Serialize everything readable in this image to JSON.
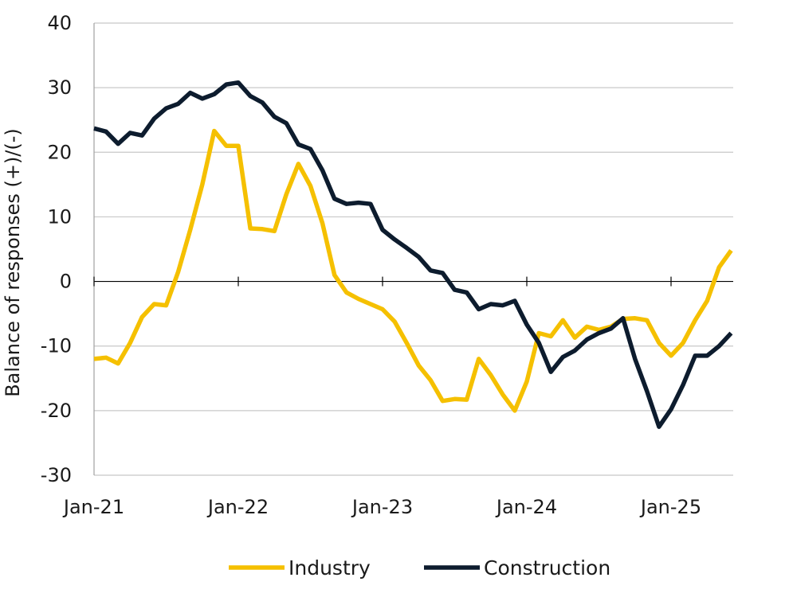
{
  "chart_data": {
    "type": "line",
    "title": "",
    "xlabel": "",
    "ylabel": "Balance of responses  (+)/(-)",
    "ylim": [
      -30,
      40
    ],
    "yticks": [
      -30,
      -20,
      -10,
      0,
      10,
      20,
      30,
      40
    ],
    "xticks": [
      "Jan-21",
      "Jan-22",
      "Jan-23",
      "Jan-24",
      "Jan-25"
    ],
    "x_start": "Jan-21",
    "x_end": "Jun-25",
    "grid": true,
    "legend_position": "bottom",
    "x": [
      "Jan-21",
      "Feb-21",
      "Mar-21",
      "Apr-21",
      "May-21",
      "Jun-21",
      "Jul-21",
      "Aug-21",
      "Sep-21",
      "Oct-21",
      "Nov-21",
      "Dec-21",
      "Jan-22",
      "Feb-22",
      "Mar-22",
      "Apr-22",
      "May-22",
      "Jun-22",
      "Jul-22",
      "Aug-22",
      "Sep-22",
      "Oct-22",
      "Nov-22",
      "Dec-22",
      "Jan-23",
      "Feb-23",
      "Mar-23",
      "Apr-23",
      "May-23",
      "Jun-23",
      "Jul-23",
      "Aug-23",
      "Sep-23",
      "Oct-23",
      "Nov-23",
      "Dec-23",
      "Jan-24",
      "Feb-24",
      "Mar-24",
      "Apr-24",
      "May-24",
      "Jun-24",
      "Jul-24",
      "Aug-24",
      "Sep-24",
      "Oct-24",
      "Nov-24",
      "Dec-24",
      "Jan-25",
      "Feb-25",
      "Mar-25",
      "Apr-25",
      "May-25",
      "Jun-25"
    ],
    "series": [
      {
        "name": "Industry",
        "color": "#f5c000",
        "values": [
          -12,
          -11.8,
          -12.7,
          -9.5,
          -5.5,
          -3.5,
          -3.7,
          1.5,
          8,
          15,
          23.3,
          21,
          21,
          8.2,
          8.1,
          7.8,
          13.5,
          18.2,
          14.8,
          9,
          1,
          -1.7,
          -2.7,
          -3.5,
          -4.3,
          -6.2,
          -9.5,
          -13,
          -15.3,
          -18.5,
          -18.2,
          -18.3,
          -12,
          -14.5,
          -17.5,
          -20,
          -15.5,
          -8,
          -8.5,
          -6,
          -8.7,
          -7,
          -7.5,
          -7,
          -5.8,
          -5.7,
          -6,
          -9.5,
          -11.5,
          -9.5,
          -6,
          -3,
          2.2,
          4.8
        ]
      },
      {
        "name": "Construction",
        "color": "#0d1c2e",
        "values": [
          23.7,
          23.2,
          21.3,
          23,
          22.6,
          25.2,
          26.8,
          27.5,
          29.2,
          28.3,
          29,
          30.5,
          30.8,
          28.7,
          27.7,
          25.5,
          24.5,
          21.2,
          20.5,
          17.2,
          12.8,
          12,
          12.2,
          12,
          8,
          6.5,
          5.2,
          3.8,
          1.7,
          1.3,
          -1.3,
          -1.7,
          -4.3,
          -3.5,
          -3.7,
          -3,
          -6.7,
          -9.5,
          -14,
          -11.7,
          -10.7,
          -9,
          -8,
          -7.3,
          -5.7,
          -12,
          -17,
          -22.5,
          -19.8,
          -16,
          -11.5,
          -11.5,
          -10,
          -8
        ]
      }
    ]
  }
}
